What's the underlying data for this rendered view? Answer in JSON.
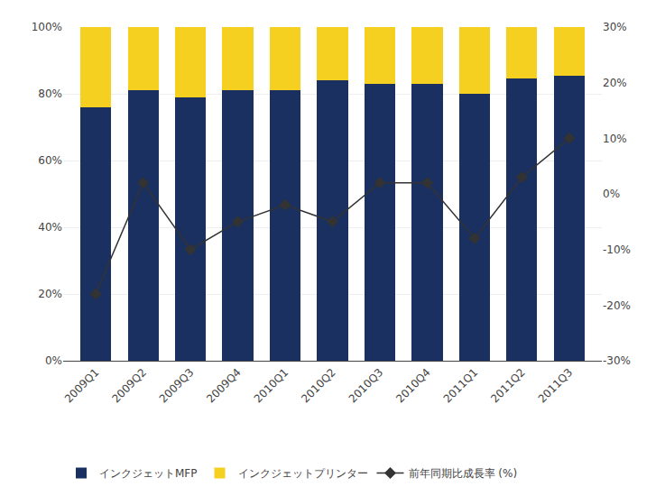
{
  "chart_data": {
    "type": "bar",
    "stacked": true,
    "categories": [
      "2009Q1",
      "2009Q2",
      "2009Q3",
      "2009Q4",
      "2010Q1",
      "2010Q2",
      "2010Q3",
      "2010Q4",
      "2011Q1",
      "2011Q2",
      "2011Q3"
    ],
    "series": [
      {
        "name": "インクジェットMFP",
        "type": "bar",
        "color": "#1a3060",
        "values": [
          0.76,
          0.81,
          0.79,
          0.81,
          0.81,
          0.84,
          0.83,
          0.83,
          0.8,
          0.845,
          0.853
        ]
      },
      {
        "name": "インクジェットプリンター",
        "type": "bar",
        "color": "#f5d020",
        "values": [
          0.24,
          0.19,
          0.21,
          0.19,
          0.19,
          0.16,
          0.17,
          0.17,
          0.2,
          0.155,
          0.147
        ]
      },
      {
        "name": "前年同期比成長率 (%)",
        "type": "line",
        "axis": "y2",
        "color": "#333333",
        "marker": "diamond",
        "line_style": "solid",
        "values": [
          -18,
          2,
          -10,
          -5,
          -2,
          -5,
          2,
          2,
          -8,
          3,
          10
        ]
      }
    ],
    "ylim": [
      0,
      1.0
    ],
    "yticks": [
      {
        "value": 0.0,
        "label": "0%"
      },
      {
        "value": 0.2,
        "label": "20%"
      },
      {
        "value": 0.4,
        "label": "40%"
      },
      {
        "value": 0.6,
        "label": "60%"
      },
      {
        "value": 0.8,
        "label": "80%"
      },
      {
        "value": 1.0,
        "label": "100%"
      }
    ],
    "y2lim": [
      -30,
      30
    ],
    "y2ticks": [
      {
        "value": -30,
        "label": "-30%"
      },
      {
        "value": -20,
        "label": "-20%"
      },
      {
        "value": -10,
        "label": "-10%"
      },
      {
        "value": 0,
        "label": "0%"
      },
      {
        "value": 10,
        "label": "10%"
      },
      {
        "value": 20,
        "label": "20%"
      },
      {
        "value": 30,
        "label": "30%"
      }
    ],
    "grid": true,
    "legend": "lower left"
  }
}
